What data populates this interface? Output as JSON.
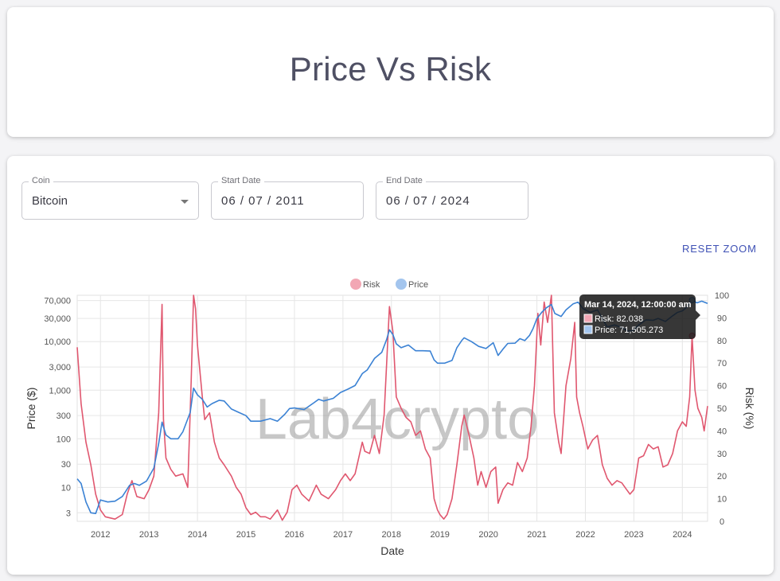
{
  "page": {
    "title": "Price Vs Risk"
  },
  "controls": {
    "coin": {
      "label": "Coin",
      "value": "Bitcoin"
    },
    "start_date": {
      "label": "Start Date",
      "value": "06 / 07 / 2011"
    },
    "end_date": {
      "label": "End Date",
      "value": "06 / 07 / 2024"
    },
    "reset_zoom_label": "RESET ZOOM"
  },
  "watermark": "Lab4crypto",
  "colors": {
    "risk": "#e0576f",
    "price": "#3b82d4",
    "risk_fill": "#f2a7b4",
    "price_fill": "#a3c5ee"
  },
  "tooltip": {
    "title": "Mar 14, 2024, 12:00:00 am",
    "risk_line": "Risk: 82.038",
    "price_line": "Price: 71,505.273"
  },
  "chart_data": {
    "type": "line",
    "xlabel": "Date",
    "ylabel_left": "Price ($)",
    "ylabel_right": "Risk (%)",
    "y_left_scale": "log",
    "ylim_left": [
      2,
      90000
    ],
    "ylim_right": [
      0,
      100
    ],
    "xlim": [
      2011.52,
      2024.52
    ],
    "grid": true,
    "legend_position": "top-center",
    "x_ticks": [
      "2012",
      "2013",
      "2014",
      "2015",
      "2016",
      "2017",
      "2018",
      "2019",
      "2020",
      "2021",
      "2022",
      "2023",
      "2024"
    ],
    "y_left_ticks": [
      {
        "value": 3,
        "label": "3"
      },
      {
        "value": 10,
        "label": "10"
      },
      {
        "value": 30,
        "label": "30"
      },
      {
        "value": 100,
        "label": "100"
      },
      {
        "value": 300,
        "label": "300"
      },
      {
        "value": 1000,
        "label": "1,000"
      },
      {
        "value": 3000,
        "label": "3,000"
      },
      {
        "value": 10000,
        "label": "10,000"
      },
      {
        "value": 30000,
        "label": "30,000"
      },
      {
        "value": 70000,
        "label": "70,000"
      }
    ],
    "y_right_ticks": [
      0,
      10,
      20,
      30,
      40,
      50,
      60,
      70,
      80,
      90,
      100
    ],
    "series": [
      {
        "name": "Risk",
        "axis": "right",
        "points": [
          [
            2011.52,
            77
          ],
          [
            2011.6,
            52
          ],
          [
            2011.7,
            35
          ],
          [
            2011.8,
            25
          ],
          [
            2011.9,
            12
          ],
          [
            2012.0,
            5
          ],
          [
            2012.1,
            2
          ],
          [
            2012.3,
            1
          ],
          [
            2012.45,
            3
          ],
          [
            2012.55,
            12
          ],
          [
            2012.65,
            18
          ],
          [
            2012.75,
            11
          ],
          [
            2012.9,
            10
          ],
          [
            2013.0,
            14
          ],
          [
            2013.1,
            20
          ],
          [
            2013.2,
            48
          ],
          [
            2013.27,
            96
          ],
          [
            2013.3,
            45
          ],
          [
            2013.35,
            28
          ],
          [
            2013.45,
            23
          ],
          [
            2013.55,
            20
          ],
          [
            2013.7,
            21
          ],
          [
            2013.8,
            15
          ],
          [
            2013.87,
            62
          ],
          [
            2013.92,
            100
          ],
          [
            2013.96,
            94
          ],
          [
            2014.0,
            78
          ],
          [
            2014.1,
            55
          ],
          [
            2014.15,
            45
          ],
          [
            2014.25,
            48
          ],
          [
            2014.35,
            35
          ],
          [
            2014.45,
            28
          ],
          [
            2014.55,
            25
          ],
          [
            2014.7,
            20
          ],
          [
            2014.8,
            15
          ],
          [
            2014.9,
            12
          ],
          [
            2015.0,
            6
          ],
          [
            2015.1,
            3
          ],
          [
            2015.2,
            4
          ],
          [
            2015.3,
            2
          ],
          [
            2015.4,
            2
          ],
          [
            2015.5,
            1
          ],
          [
            2015.65,
            5
          ],
          [
            2015.75,
            0.5
          ],
          [
            2015.85,
            4
          ],
          [
            2015.95,
            14
          ],
          [
            2016.05,
            16
          ],
          [
            2016.15,
            12
          ],
          [
            2016.3,
            9
          ],
          [
            2016.45,
            16
          ],
          [
            2016.55,
            12
          ],
          [
            2016.7,
            10
          ],
          [
            2016.85,
            14
          ],
          [
            2016.95,
            18
          ],
          [
            2017.05,
            21
          ],
          [
            2017.15,
            18
          ],
          [
            2017.25,
            21
          ],
          [
            2017.4,
            35
          ],
          [
            2017.45,
            31
          ],
          [
            2017.55,
            30
          ],
          [
            2017.65,
            38
          ],
          [
            2017.75,
            30
          ],
          [
            2017.85,
            47
          ],
          [
            2017.96,
            95
          ],
          [
            2018.03,
            84
          ],
          [
            2018.1,
            55
          ],
          [
            2018.2,
            50
          ],
          [
            2018.3,
            46
          ],
          [
            2018.4,
            44
          ],
          [
            2018.5,
            38
          ],
          [
            2018.6,
            40
          ],
          [
            2018.7,
            32
          ],
          [
            2018.8,
            28
          ],
          [
            2018.88,
            10
          ],
          [
            2018.95,
            5
          ],
          [
            2019.0,
            3
          ],
          [
            2019.08,
            1
          ],
          [
            2019.15,
            3
          ],
          [
            2019.25,
            10
          ],
          [
            2019.35,
            25
          ],
          [
            2019.45,
            42
          ],
          [
            2019.5,
            47
          ],
          [
            2019.6,
            38
          ],
          [
            2019.7,
            28
          ],
          [
            2019.78,
            16
          ],
          [
            2019.85,
            22
          ],
          [
            2019.95,
            15
          ],
          [
            2020.05,
            22
          ],
          [
            2020.15,
            24
          ],
          [
            2020.2,
            8
          ],
          [
            2020.3,
            14
          ],
          [
            2020.4,
            17
          ],
          [
            2020.5,
            16
          ],
          [
            2020.6,
            26
          ],
          [
            2020.7,
            22
          ],
          [
            2020.8,
            28
          ],
          [
            2020.88,
            42
          ],
          [
            2020.95,
            60
          ],
          [
            2021.02,
            92
          ],
          [
            2021.08,
            78
          ],
          [
            2021.15,
            97
          ],
          [
            2021.22,
            88
          ],
          [
            2021.3,
            100
          ],
          [
            2021.36,
            48
          ],
          [
            2021.45,
            35
          ],
          [
            2021.5,
            30
          ],
          [
            2021.6,
            60
          ],
          [
            2021.7,
            72
          ],
          [
            2021.78,
            88
          ],
          [
            2021.82,
            55
          ],
          [
            2021.88,
            48
          ],
          [
            2021.95,
            42
          ],
          [
            2022.05,
            32
          ],
          [
            2022.15,
            36
          ],
          [
            2022.25,
            38
          ],
          [
            2022.35,
            25
          ],
          [
            2022.45,
            19
          ],
          [
            2022.55,
            16
          ],
          [
            2022.65,
            18
          ],
          [
            2022.75,
            17
          ],
          [
            2022.85,
            14
          ],
          [
            2022.92,
            12
          ],
          [
            2023.0,
            14
          ],
          [
            2023.1,
            28
          ],
          [
            2023.2,
            29
          ],
          [
            2023.3,
            34
          ],
          [
            2023.4,
            32
          ],
          [
            2023.5,
            33
          ],
          [
            2023.6,
            24
          ],
          [
            2023.7,
            25
          ],
          [
            2023.8,
            30
          ],
          [
            2023.9,
            40
          ],
          [
            2024.0,
            44
          ],
          [
            2024.08,
            42
          ],
          [
            2024.15,
            55
          ],
          [
            2024.2,
            82
          ],
          [
            2024.26,
            58
          ],
          [
            2024.32,
            50
          ],
          [
            2024.4,
            46
          ],
          [
            2024.45,
            40
          ],
          [
            2024.52,
            51
          ]
        ]
      },
      {
        "name": "Price",
        "axis": "left",
        "points": [
          [
            2011.52,
            15
          ],
          [
            2011.6,
            12
          ],
          [
            2011.7,
            5
          ],
          [
            2011.8,
            3
          ],
          [
            2011.9,
            2.9
          ],
          [
            2012.0,
            5.5
          ],
          [
            2012.15,
            5
          ],
          [
            2012.3,
            5.2
          ],
          [
            2012.45,
            6.5
          ],
          [
            2012.6,
            11
          ],
          [
            2012.7,
            12
          ],
          [
            2012.8,
            11
          ],
          [
            2012.95,
            13.5
          ],
          [
            2013.1,
            25
          ],
          [
            2013.2,
            80
          ],
          [
            2013.27,
            220
          ],
          [
            2013.35,
            120
          ],
          [
            2013.45,
            100
          ],
          [
            2013.6,
            100
          ],
          [
            2013.7,
            140
          ],
          [
            2013.85,
            350
          ],
          [
            2013.92,
            1100
          ],
          [
            2014.0,
            800
          ],
          [
            2014.1,
            650
          ],
          [
            2014.2,
            450
          ],
          [
            2014.3,
            530
          ],
          [
            2014.45,
            620
          ],
          [
            2014.55,
            600
          ],
          [
            2014.7,
            410
          ],
          [
            2014.85,
            350
          ],
          [
            2015.0,
            300
          ],
          [
            2015.1,
            230
          ],
          [
            2015.3,
            230
          ],
          [
            2015.5,
            260
          ],
          [
            2015.65,
            230
          ],
          [
            2015.8,
            320
          ],
          [
            2015.9,
            420
          ],
          [
            2016.0,
            430
          ],
          [
            2016.2,
            400
          ],
          [
            2016.4,
            550
          ],
          [
            2016.5,
            650
          ],
          [
            2016.6,
            600
          ],
          [
            2016.8,
            680
          ],
          [
            2016.95,
            900
          ],
          [
            2017.1,
            1050
          ],
          [
            2017.25,
            1250
          ],
          [
            2017.4,
            2200
          ],
          [
            2017.5,
            2600
          ],
          [
            2017.65,
            4500
          ],
          [
            2017.8,
            6000
          ],
          [
            2017.9,
            11000
          ],
          [
            2017.96,
            17500
          ],
          [
            2018.03,
            14000
          ],
          [
            2018.1,
            9000
          ],
          [
            2018.2,
            7500
          ],
          [
            2018.35,
            8500
          ],
          [
            2018.5,
            6500
          ],
          [
            2018.65,
            6500
          ],
          [
            2018.8,
            6400
          ],
          [
            2018.88,
            4200
          ],
          [
            2018.95,
            3600
          ],
          [
            2019.1,
            3600
          ],
          [
            2019.25,
            4100
          ],
          [
            2019.35,
            7500
          ],
          [
            2019.45,
            10500
          ],
          [
            2019.5,
            12000
          ],
          [
            2019.65,
            10000
          ],
          [
            2019.8,
            8000
          ],
          [
            2019.95,
            7200
          ],
          [
            2020.1,
            9500
          ],
          [
            2020.2,
            5200
          ],
          [
            2020.3,
            7000
          ],
          [
            2020.4,
            9200
          ],
          [
            2020.55,
            9300
          ],
          [
            2020.65,
            11500
          ],
          [
            2020.75,
            10500
          ],
          [
            2020.85,
            13500
          ],
          [
            2020.92,
            18500
          ],
          [
            2021.0,
            30000
          ],
          [
            2021.1,
            40000
          ],
          [
            2021.2,
            50000
          ],
          [
            2021.3,
            58000
          ],
          [
            2021.37,
            38000
          ],
          [
            2021.5,
            33000
          ],
          [
            2021.6,
            45000
          ],
          [
            2021.75,
            60000
          ],
          [
            2021.85,
            65000
          ],
          [
            2021.95,
            48000
          ],
          [
            2022.1,
            40000
          ],
          [
            2022.25,
            45000
          ],
          [
            2022.35,
            30000
          ],
          [
            2022.45,
            20000
          ],
          [
            2022.6,
            22000
          ],
          [
            2022.75,
            19500
          ],
          [
            2022.88,
            16500
          ],
          [
            2022.98,
            16800
          ],
          [
            2023.1,
            22000
          ],
          [
            2023.25,
            28000
          ],
          [
            2023.4,
            27500
          ],
          [
            2023.5,
            30000
          ],
          [
            2023.65,
            26000
          ],
          [
            2023.8,
            34000
          ],
          [
            2023.9,
            40000
          ],
          [
            2024.0,
            43000
          ],
          [
            2024.1,
            52000
          ],
          [
            2024.2,
            71505
          ],
          [
            2024.3,
            63000
          ],
          [
            2024.4,
            68000
          ],
          [
            2024.52,
            61000
          ]
        ]
      }
    ],
    "highlight": {
      "x": 2024.2,
      "risk": 82.038,
      "price": 71505.273
    }
  }
}
